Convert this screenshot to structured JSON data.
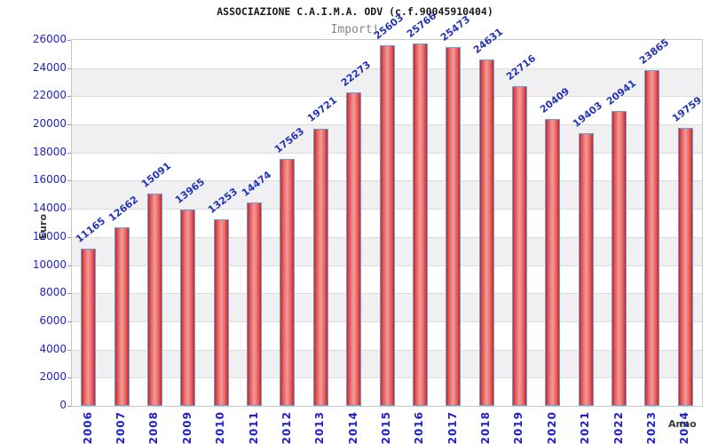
{
  "title": "ASSOCIAZIONE C.A.I.M.A. ODV (c.f.90045910404)",
  "subtitle": "Importi",
  "chart_data": {
    "type": "bar",
    "title": "ASSOCIAZIONE C.A.I.M.A. ODV (c.f.90045910404)",
    "subtitle": "Importi",
    "xlabel": "Anno",
    "ylabel": "Euro",
    "categories": [
      "2006",
      "2007",
      "2008",
      "2009",
      "2010",
      "2011",
      "2012",
      "2013",
      "2014",
      "2015",
      "2016",
      "2017",
      "2018",
      "2019",
      "2020",
      "2021",
      "2022",
      "2023",
      "2024"
    ],
    "values": [
      11165,
      12662,
      15091,
      13965,
      13253,
      14474,
      17563,
      19721,
      22273,
      25603,
      25766,
      25473,
      24631,
      22716,
      20409,
      19403,
      20941,
      23865,
      19759
    ],
    "ylim": [
      0,
      26000
    ],
    "ytick_step": 2000,
    "ytick_labels": [
      "0",
      "2000",
      "4000",
      "6000",
      "8000",
      "10000",
      "12000",
      "14000",
      "16000",
      "18000",
      "20000",
      "22000",
      "24000",
      "26000"
    ],
    "grid": true,
    "legend": "none",
    "band_fill_alternating": true,
    "colors": {
      "bar_edge": "#c9252b",
      "bar_center": "#f49b9b",
      "bar_border": "#66a0d6",
      "value_label": "#2233bb",
      "tick_label": "#1f1fcc",
      "axis_title": "#3a3a3a",
      "band_gray": "#f0f0f2",
      "gridline": "#dcdcdc",
      "plot_border": "#c8c8c8",
      "title_text": "#1a1a1a",
      "subtitle_text": "#888888"
    }
  }
}
